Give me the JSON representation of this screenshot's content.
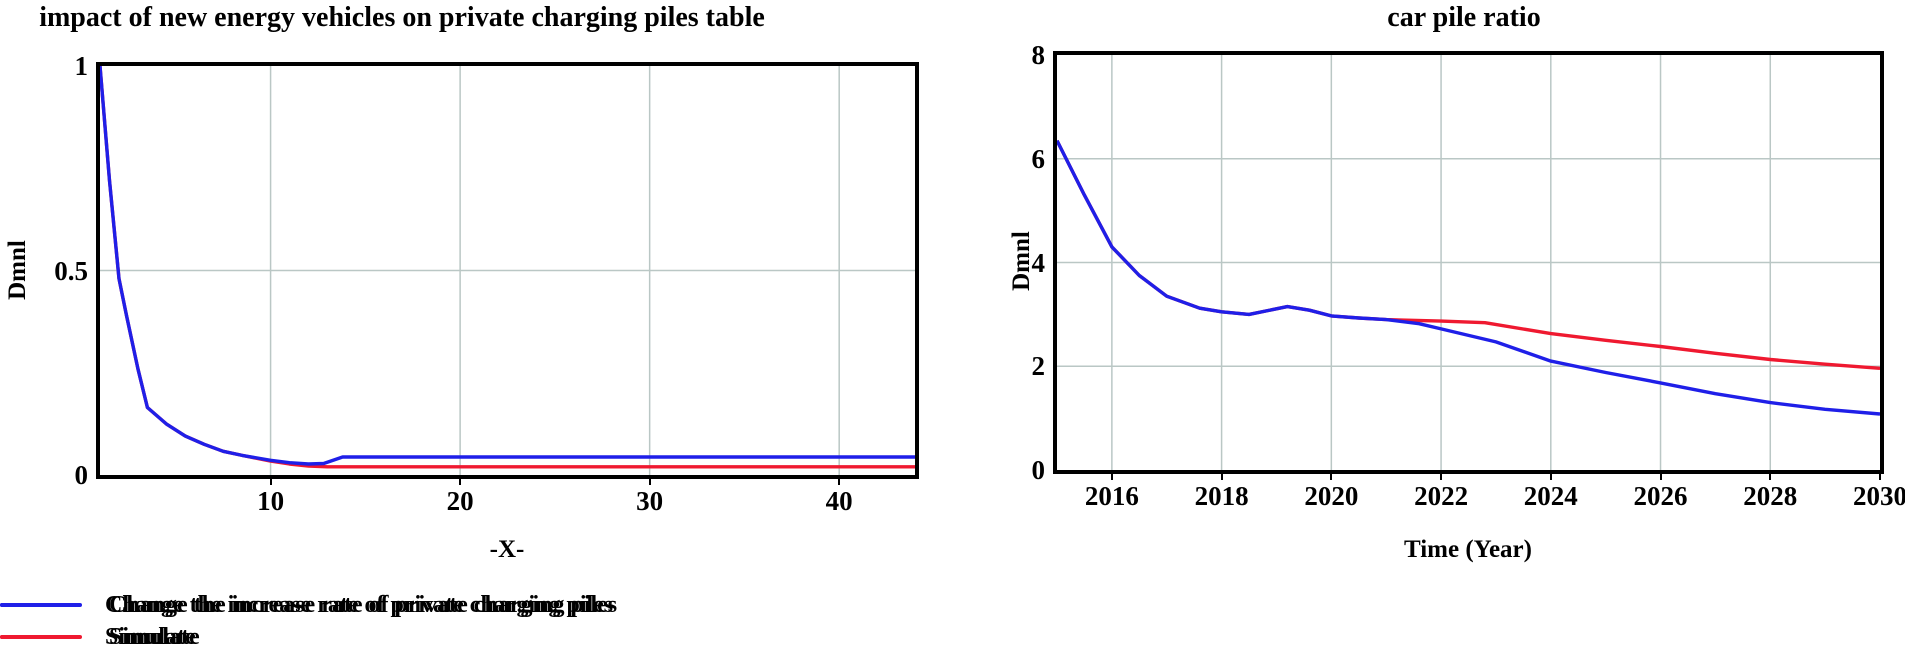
{
  "page": {
    "background": "#ffffff",
    "frame_color": "#000000",
    "grid_color": "#bac7c5",
    "text_color": "#000000"
  },
  "legend": {
    "items": [
      {
        "label": "Change the increase rate of private charging piles",
        "color": "#1f1fe8"
      },
      {
        "label": "Simulate",
        "color": "#ef1930"
      }
    ]
  },
  "chart_data": [
    {
      "type": "line",
      "title": "impact of new energy vehicles on private charging piles table",
      "xlabel": "-X-",
      "ylabel": "Dmnl",
      "xlim": [
        1,
        44
      ],
      "ylim": [
        0,
        1
      ],
      "grid": true,
      "legend_position": "below-left",
      "x_ticks": [
        10,
        20,
        30,
        40
      ],
      "x_tick_labels": [
        "10",
        "20",
        "30",
        "40"
      ],
      "y_ticks": [
        0,
        0.5,
        1
      ],
      "y_tick_labels": [
        "0",
        "0.5",
        "1"
      ],
      "series": [
        {
          "name": "Change the increase rate of private charging piles",
          "color": "#1f1fe8",
          "points": [
            [
              1,
              1.0
            ],
            [
              1.5,
              0.72
            ],
            [
              2,
              0.48
            ],
            [
              2.4,
              0.39
            ],
            [
              3,
              0.26
            ],
            [
              3.5,
              0.165
            ],
            [
              4.5,
              0.125
            ],
            [
              5.5,
              0.095
            ],
            [
              6.5,
              0.075
            ],
            [
              7.5,
              0.058
            ],
            [
              8.5,
              0.048
            ],
            [
              10,
              0.036
            ],
            [
              11,
              0.03
            ],
            [
              12,
              0.027
            ],
            [
              12.8,
              0.028
            ],
            [
              13.8,
              0.044
            ],
            [
              44,
              0.044
            ]
          ]
        },
        {
          "name": "Simulate",
          "color": "#ef1930",
          "points": [
            [
              1,
              1.0
            ],
            [
              1.5,
              0.72
            ],
            [
              2,
              0.48
            ],
            [
              2.4,
              0.39
            ],
            [
              3,
              0.26
            ],
            [
              3.5,
              0.165
            ],
            [
              4.5,
              0.125
            ],
            [
              5.5,
              0.095
            ],
            [
              6.5,
              0.075
            ],
            [
              7.5,
              0.058
            ],
            [
              8.5,
              0.048
            ],
            [
              10,
              0.034
            ],
            [
              11,
              0.027
            ],
            [
              12,
              0.022
            ],
            [
              13,
              0.02
            ],
            [
              44,
              0.02
            ]
          ]
        }
      ]
    },
    {
      "type": "line",
      "title": "car pile ratio",
      "xlabel": "Time (Year)",
      "ylabel": "Dmnl",
      "xlim": [
        2015,
        2030
      ],
      "ylim": [
        0,
        8
      ],
      "grid": true,
      "legend_position": "below-left",
      "x_ticks": [
        2016,
        2018,
        2020,
        2022,
        2024,
        2026,
        2028,
        2030
      ],
      "x_tick_labels": [
        "2016",
        "2018",
        "2020",
        "2022",
        "2024",
        "2026",
        "2028",
        "2030"
      ],
      "y_ticks": [
        0,
        2,
        4,
        6,
        8
      ],
      "y_tick_labels": [
        "0",
        "2",
        "4",
        "6",
        "8"
      ],
      "series": [
        {
          "name": "Change the increase rate of private charging piles",
          "color": "#1f1fe8",
          "points": [
            [
              2015,
              6.35
            ],
            [
              2015.5,
              5.3
            ],
            [
              2016,
              4.3
            ],
            [
              2016.5,
              3.75
            ],
            [
              2017,
              3.35
            ],
            [
              2017.6,
              3.12
            ],
            [
              2018,
              3.05
            ],
            [
              2018.5,
              3.0
            ],
            [
              2019.2,
              3.15
            ],
            [
              2019.6,
              3.08
            ],
            [
              2020,
              2.97
            ],
            [
              2020.5,
              2.93
            ],
            [
              2021,
              2.9
            ],
            [
              2021.6,
              2.82
            ],
            [
              2022,
              2.72
            ],
            [
              2023,
              2.47
            ],
            [
              2024,
              2.1
            ],
            [
              2025,
              1.88
            ],
            [
              2026,
              1.68
            ],
            [
              2027,
              1.47
            ],
            [
              2028,
              1.3
            ],
            [
              2029,
              1.17
            ],
            [
              2030,
              1.08
            ]
          ]
        },
        {
          "name": "Simulate",
          "color": "#ef1930",
          "points": [
            [
              2015,
              6.35
            ],
            [
              2015.5,
              5.3
            ],
            [
              2016,
              4.3
            ],
            [
              2016.5,
              3.75
            ],
            [
              2017,
              3.35
            ],
            [
              2017.6,
              3.12
            ],
            [
              2018,
              3.05
            ],
            [
              2018.5,
              3.0
            ],
            [
              2019.2,
              3.15
            ],
            [
              2019.6,
              3.08
            ],
            [
              2020,
              2.97
            ],
            [
              2020.5,
              2.93
            ],
            [
              2021,
              2.9
            ],
            [
              2022,
              2.87
            ],
            [
              2022.8,
              2.84
            ],
            [
              2024,
              2.63
            ],
            [
              2025,
              2.5
            ],
            [
              2026,
              2.38
            ],
            [
              2027,
              2.25
            ],
            [
              2028,
              2.13
            ],
            [
              2029,
              2.04
            ],
            [
              2030,
              1.96
            ]
          ]
        }
      ]
    }
  ]
}
